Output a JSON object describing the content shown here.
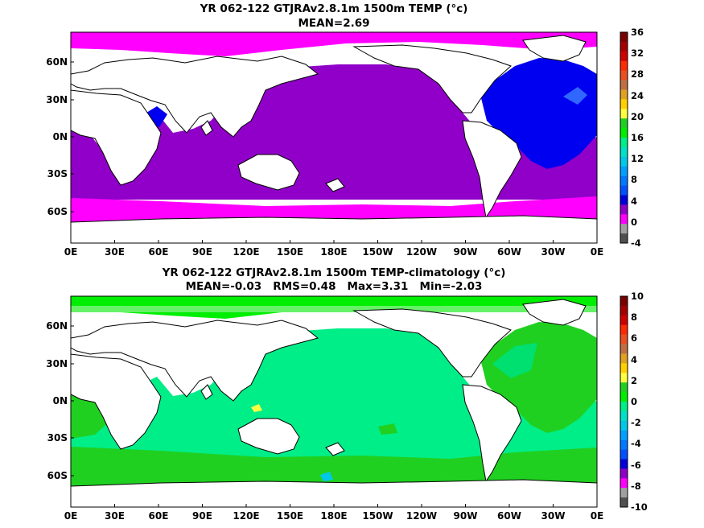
{
  "panels": [
    {
      "title_line1": "YR 062-122 GTJRAv2.8.1m 1500m TEMP (°c)",
      "title_line2": "MEAN=2.69",
      "x_ticks": [
        "0E",
        "30E",
        "60E",
        "90E",
        "120E",
        "150E",
        "180E",
        "150W",
        "120W",
        "90W",
        "60W",
        "30W",
        "0E"
      ],
      "y_ticks": [
        "60N",
        "30N",
        "0N",
        "30S",
        "60S"
      ],
      "colorbar": {
        "labels": [
          "36",
          "32",
          "28",
          "24",
          "20",
          "16",
          "12",
          "8",
          "4",
          "0",
          "-4"
        ],
        "colors": [
          "#7a0000",
          "#a50000",
          "#d00000",
          "#ff2a00",
          "#e85020",
          "#c07040",
          "#e0a020",
          "#ffd000",
          "#ffff40",
          "#20d020",
          "#00ee00",
          "#00ee88",
          "#00e0c8",
          "#00c8e8",
          "#00a0ff",
          "#0078ff",
          "#0050ff",
          "#0000d8",
          "#9000c8",
          "#ff00ff",
          "#a0a0a0",
          "#505050"
        ]
      },
      "chart_data": {
        "type": "heatmap",
        "field": "ocean temperature at 1500m",
        "units": "°c",
        "mean": 2.69,
        "zones": [
          {
            "region": "Pacific, Indian, South Atlantic",
            "color": "#9000c8",
            "value_range": [
              2,
              4
            ]
          },
          {
            "region": "North Atlantic",
            "color": "#0000d8",
            "value_range": [
              4,
              6
            ]
          },
          {
            "region": "Southern Ocean, Arctic",
            "color": "#ff00ff",
            "value_range": [
              0,
              2
            ]
          }
        ],
        "zlim": [
          -4,
          36
        ]
      }
    },
    {
      "title_line1": "YR 062-122 GTJRAv2.8.1m 1500m TEMP-climatology (°c)",
      "title_line2": "MEAN=-0.03   RMS=0.48   Max=3.31   Min=-2.03",
      "x_ticks": [
        "0E",
        "30E",
        "60E",
        "90E",
        "120E",
        "150E",
        "180E",
        "150W",
        "120W",
        "90W",
        "60W",
        "30W",
        "0E"
      ],
      "y_ticks": [
        "60N",
        "30N",
        "0N",
        "30S",
        "60S"
      ],
      "colorbar": {
        "labels": [
          "10",
          "8",
          "6",
          "4",
          "2",
          "0",
          "-2",
          "-4",
          "-6",
          "-8",
          "-10"
        ],
        "colors": [
          "#7a0000",
          "#a50000",
          "#d00000",
          "#ff2a00",
          "#e85020",
          "#c07040",
          "#e0a020",
          "#ffd000",
          "#ffff40",
          "#20d020",
          "#00ee00",
          "#00ee88",
          "#00e0c8",
          "#00c8e8",
          "#00a0ff",
          "#0078ff",
          "#0050ff",
          "#0000d8",
          "#9000c8",
          "#ff00ff",
          "#a0a0a0",
          "#505050"
        ]
      },
      "chart_data": {
        "type": "heatmap",
        "field": "ocean temperature difference at 1500m",
        "units": "°c",
        "mean": -0.03,
        "rms": 0.48,
        "max": 3.31,
        "min": -2.03,
        "zones": [
          {
            "region": "most ocean",
            "color": "#00ee88",
            "value_range": [
              0,
              1
            ]
          },
          {
            "region": "North Atlantic, Southern Ocean band",
            "color": "#20d020",
            "value_range": [
              1,
              2
            ]
          }
        ],
        "zlim": [
          -10,
          10
        ]
      }
    }
  ]
}
